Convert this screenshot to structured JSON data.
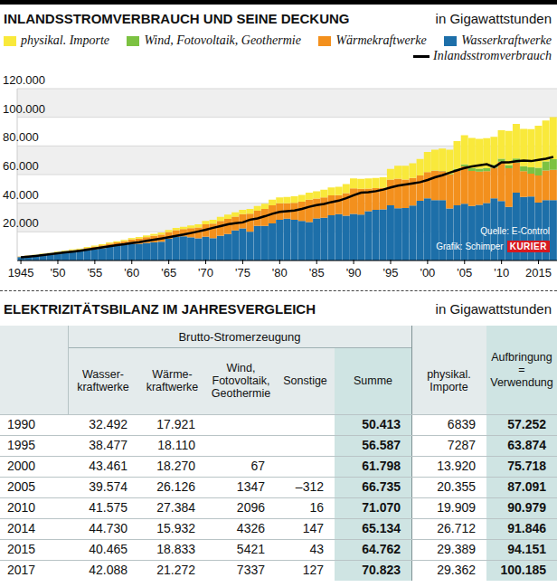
{
  "chart_data": {
    "type": "bar",
    "title": "INLANDSSTROMVERBRAUCH UND SEINE DECKUNG",
    "subtitle": "in Gigawattstunden",
    "annotations": [
      "Quelle: E-Control",
      "Grafik: Schimper",
      "KURIER"
    ],
    "stacked": true,
    "grid": true,
    "legend": "top",
    "categories": [
      "1945",
      null,
      null,
      null,
      null,
      "'50",
      null,
      null,
      null,
      null,
      "'55",
      null,
      null,
      null,
      null,
      "'60",
      null,
      null,
      null,
      null,
      "'65",
      null,
      null,
      null,
      null,
      "'70",
      null,
      null,
      null,
      null,
      "'75",
      null,
      null,
      null,
      null,
      "'80",
      null,
      null,
      null,
      null,
      "'85",
      null,
      null,
      null,
      null,
      "'90",
      null,
      null,
      null,
      null,
      "'95",
      null,
      null,
      null,
      null,
      "'00",
      null,
      null,
      null,
      null,
      "'05",
      null,
      null,
      null,
      null,
      "'10",
      null,
      null,
      null,
      null,
      "2015",
      null,
      null
    ],
    "ylim": [
      0,
      120000
    ],
    "yticks": [
      {
        "value": 20000,
        "label": "20.000"
      },
      {
        "value": 40000,
        "label": "40.000"
      },
      {
        "value": 60000,
        "label": "60.000"
      },
      {
        "value": 80000,
        "label": "80.000"
      },
      {
        "value": 100000,
        "label": "100.000"
      },
      {
        "value": 120000,
        "label": "120.000"
      }
    ],
    "series": [
      {
        "name": "physikal. Importe",
        "type": "bar",
        "color": "#f9e93b",
        "values": [
          100,
          150,
          200,
          300,
          400,
          500,
          500,
          600,
          600,
          700,
          700,
          800,
          800,
          900,
          900,
          1000,
          1100,
          1200,
          1300,
          1400,
          1500,
          1600,
          1700,
          1900,
          2100,
          2500,
          2700,
          2900,
          2900,
          3000,
          3000,
          3300,
          3400,
          3700,
          3900,
          4100,
          4300,
          4500,
          4700,
          4900,
          5100,
          5300,
          5600,
          5900,
          6300,
          6839,
          7000,
          7100,
          7200,
          7300,
          7287,
          9000,
          9500,
          10200,
          11500,
          13920,
          14600,
          15600,
          16900,
          19400,
          20355,
          21300,
          20800,
          21000,
          19600,
          19909,
          23800,
          24200,
          26000,
          26712,
          29389,
          28500,
          29362
        ]
      },
      {
        "name": "Wind, Fotovoltaik, Geothermie",
        "type": "bar",
        "color": "#7cc242",
        "values": [
          0,
          0,
          0,
          0,
          0,
          0,
          0,
          0,
          0,
          0,
          0,
          0,
          0,
          0,
          0,
          0,
          0,
          0,
          0,
          0,
          0,
          0,
          0,
          0,
          0,
          0,
          0,
          0,
          0,
          0,
          0,
          0,
          0,
          0,
          0,
          0,
          0,
          0,
          0,
          0,
          0,
          0,
          0,
          0,
          0,
          0,
          0,
          0,
          0,
          0,
          0,
          0,
          0,
          20,
          40,
          67,
          80,
          180,
          500,
          950,
          1347,
          1750,
          2100,
          2100,
          2050,
          2096,
          2200,
          2900,
          3600,
          4326,
          5421,
          6300,
          7337
        ]
      },
      {
        "name": "Wärmekraftwerke",
        "type": "bar",
        "color": "#f3901d",
        "values": [
          300,
          400,
          500,
          600,
          800,
          1000,
          1100,
          1300,
          1400,
          1500,
          1700,
          2000,
          2100,
          2300,
          2700,
          3200,
          3700,
          4100,
          4600,
          5000,
          4600,
          4700,
          5000,
          6400,
          7600,
          8600,
          10200,
          10300,
          10600,
          9600,
          9900,
          12600,
          10600,
          11800,
          12700,
          11400,
          10800,
          11900,
          13400,
          15600,
          13800,
          14200,
          13800,
          13200,
          15800,
          17921,
          17900,
          15700,
          15200,
          15100,
          18110,
          20800,
          19900,
          19300,
          17600,
          18270,
          20500,
          20200,
          23700,
          24500,
          26126,
          24600,
          23100,
          22300,
          21200,
          27384,
          27000,
          20900,
          18000,
          15932,
          18833,
          20700,
          21272
        ]
      },
      {
        "name": "Wasserkraftwerke",
        "type": "bar",
        "color": "#1d6fa9",
        "values": [
          2400,
          2900,
          3300,
          3900,
          4100,
          4600,
          5400,
          5900,
          6300,
          7200,
          8000,
          8600,
          9700,
          10300,
          10800,
          11500,
          11600,
          12200,
          12700,
          13100,
          15200,
          16400,
          16900,
          16200,
          15500,
          16600,
          15600,
          17300,
          18500,
          21000,
          22500,
          20100,
          24100,
          24200,
          25900,
          28500,
          29200,
          28400,
          27700,
          26800,
          29400,
          29900,
          31600,
          32400,
          31300,
          32492,
          32100,
          34500,
          35300,
          35700,
          38477,
          36400,
          36700,
          38300,
          41700,
          43461,
          42200,
          42100,
          36300,
          38500,
          39574,
          38000,
          38900,
          40100,
          43500,
          41575,
          37400,
          47400,
          44300,
          44730,
          40465,
          42200,
          42088
        ]
      },
      {
        "name": "Inlandsstromverbrauch",
        "type": "line",
        "color": "#000000",
        "values": [
          2200,
          2700,
          3200,
          3800,
          4400,
          5000,
          5700,
          6200,
          6800,
          7600,
          8400,
          9200,
          10000,
          10700,
          11300,
          12100,
          12800,
          13700,
          14500,
          15300,
          16200,
          17200,
          18100,
          19200,
          20300,
          21500,
          22800,
          24000,
          25300,
          26100,
          26600,
          28500,
          29400,
          30900,
          32600,
          33900,
          34400,
          34900,
          36000,
          37500,
          38700,
          39500,
          40800,
          41800,
          43500,
          45600,
          47300,
          47700,
          48400,
          49500,
          51000,
          52200,
          53000,
          53900,
          54700,
          56200,
          58100,
          59500,
          61300,
          63000,
          64600,
          65700,
          66500,
          67200,
          65200,
          68600,
          68600,
          69300,
          69800,
          69400,
          70200,
          71100,
          72300
        ]
      }
    ]
  },
  "table": {
    "title": "ELEKTRIZITÄTSBILANZ IM JAHRESVERGLEICH",
    "subtitle": "in Gigawattstunden",
    "group_header": "Brutto-Stromerzeugung",
    "columns": [
      null,
      "Wasser-\nkraftwerke",
      "Wärme-\nkraftwerke",
      "Wind,\nFotovoltaik,\nGeothermie",
      "Sonstige",
      "Summe",
      "physikal.\nImporte",
      "Aufbringung\n=\nVerwendung"
    ],
    "rows": [
      [
        "1990",
        "32.492",
        "17.921",
        null,
        null,
        "50.413",
        "6839",
        "57.252"
      ],
      [
        "1995",
        "38.477",
        "18.110",
        null,
        null,
        "56.587",
        "7287",
        "63.874"
      ],
      [
        "2000",
        "43.461",
        "18.270",
        "67",
        null,
        "61.798",
        "13.920",
        "75.718"
      ],
      [
        "2005",
        "39.574",
        "26.126",
        "1347",
        "–312",
        "66.735",
        "20.355",
        "87.091"
      ],
      [
        "2010",
        "41.575",
        "27.384",
        "2096",
        "16",
        "71.070",
        "19.909",
        "90.979"
      ],
      [
        "2014",
        "44.730",
        "15.932",
        "4326",
        "147",
        "65.134",
        "26.712",
        "91.846"
      ],
      [
        "2015",
        "40.465",
        "18.833",
        "5421",
        "43",
        "64.762",
        "29.389",
        "94.151"
      ],
      [
        "2017",
        "42.088",
        "21.272",
        "7337",
        "127",
        "70.823",
        "29.362",
        "100.185"
      ]
    ]
  }
}
